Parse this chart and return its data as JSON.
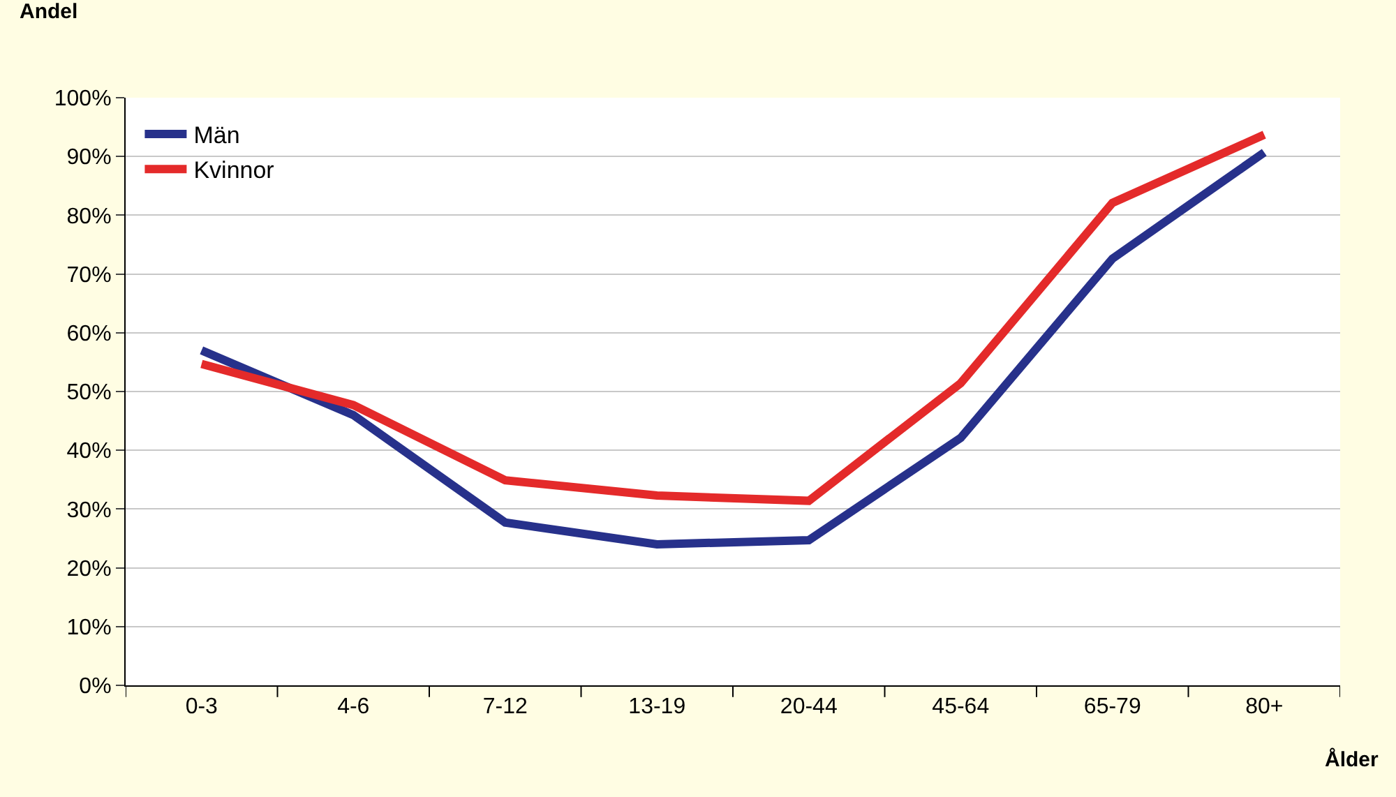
{
  "chart_data": {
    "type": "line",
    "xlabel": "Ålder",
    "ylabel": "Andel",
    "categories": [
      "0-3",
      "4-6",
      "7-12",
      "13-19",
      "20-44",
      "45-64",
      "65-79",
      "80+"
    ],
    "series": [
      {
        "name": "Män",
        "color": "#27318b",
        "values": [
          57.0,
          46.0,
          27.7,
          24.0,
          24.7,
          42.1,
          72.6,
          90.7
        ]
      },
      {
        "name": "Kvinnor",
        "color": "#e42a2a",
        "values": [
          54.7,
          47.7,
          34.9,
          32.3,
          31.4,
          51.4,
          82.1,
          93.7
        ]
      }
    ],
    "ylim": [
      0,
      100
    ],
    "yticks": [
      {
        "value": 0,
        "label": "0%"
      },
      {
        "value": 10,
        "label": "10%"
      },
      {
        "value": 20,
        "label": "20%"
      },
      {
        "value": 30,
        "label": "30%"
      },
      {
        "value": 40,
        "label": "40%"
      },
      {
        "value": 50,
        "label": "50%"
      },
      {
        "value": 60,
        "label": "60%"
      },
      {
        "value": 70,
        "label": "70%"
      },
      {
        "value": 80,
        "label": "80%"
      },
      {
        "value": 90,
        "label": "90%"
      },
      {
        "value": 100,
        "label": "100%"
      }
    ],
    "grid": "y",
    "legend": "top left",
    "marker": "none",
    "line_style": "solid"
  }
}
